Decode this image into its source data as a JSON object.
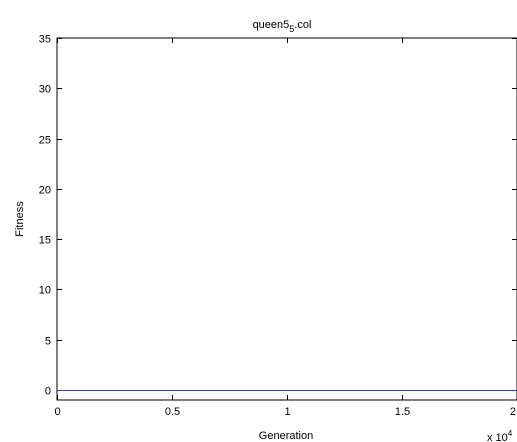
{
  "chart_data": {
    "type": "line",
    "title": "queen5",
    "title_subscript": "5",
    "title_suffix": ".col",
    "xlabel": "Generation",
    "ylabel": "Fitness",
    "x_multiplier": "x 10",
    "x_multiplier_exponent": "4",
    "xlim": [
      0,
      2
    ],
    "ylim": [
      -1,
      35
    ],
    "x_ticks": [
      0,
      0.5,
      1,
      1.5,
      2
    ],
    "x_tick_labels": [
      "0",
      "0.5",
      "1",
      "1.5",
      "2"
    ],
    "y_ticks": [
      0,
      5,
      10,
      15,
      20,
      25,
      30,
      35
    ],
    "y_tick_labels": [
      "0",
      "5",
      "10",
      "15",
      "20",
      "25",
      "30",
      "35"
    ],
    "grid": false,
    "line_color": "#2040d0",
    "series": [
      {
        "x": [
          0,
          2
        ],
        "y": [
          0,
          0
        ]
      }
    ]
  }
}
